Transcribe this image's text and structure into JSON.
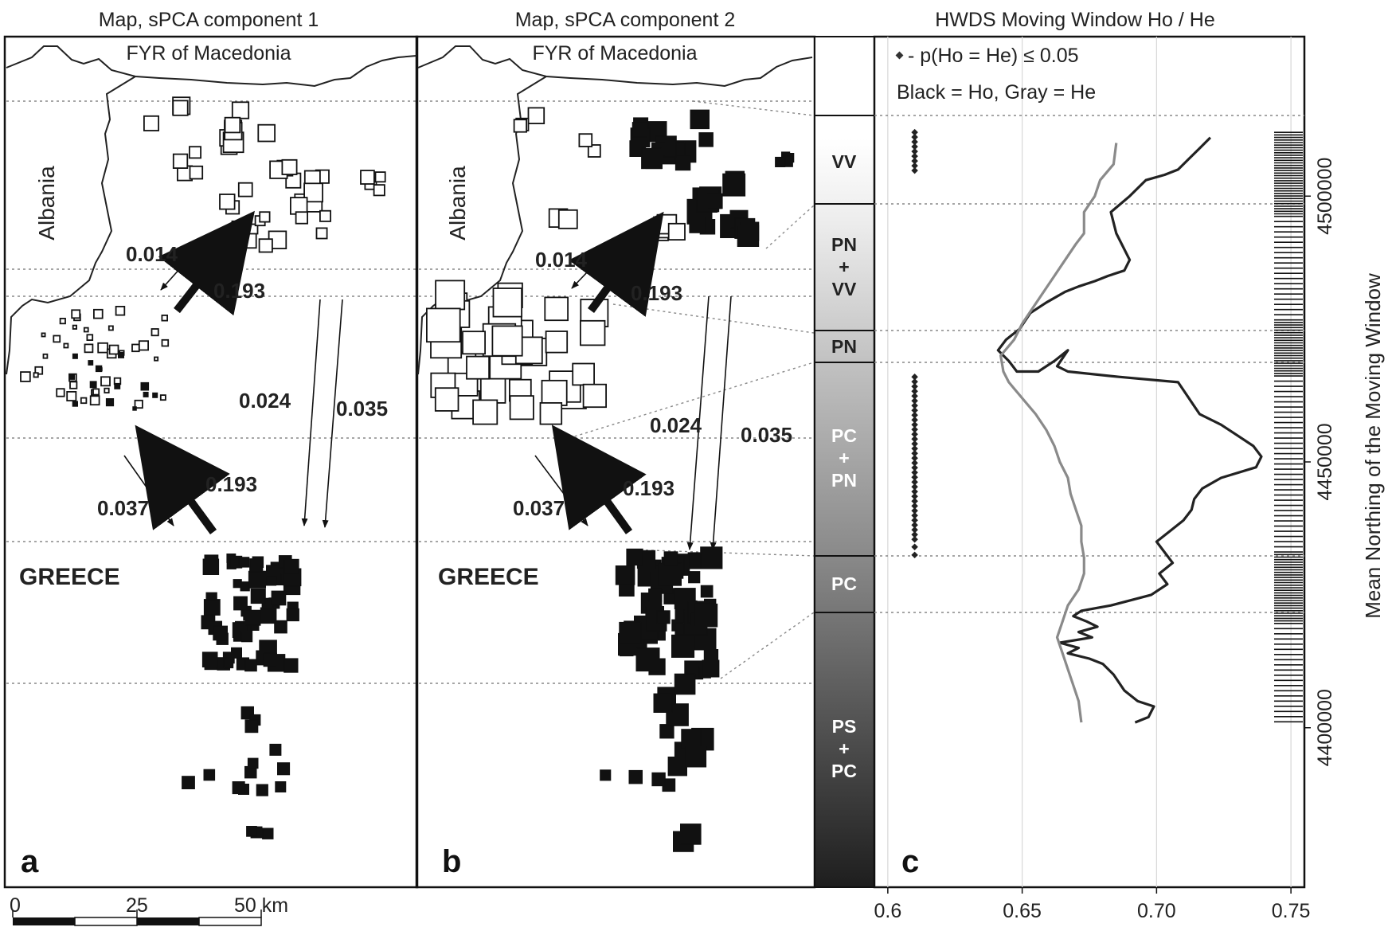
{
  "titles": {
    "a": "Map, sPCA component 1",
    "b": "Map, sPCA component 2",
    "c": "HWDS Moving Window Ho / He"
  },
  "labels": {
    "country_north": "FYR of Macedonia",
    "country_west": "Albania",
    "country_south": "GREECE"
  },
  "panel_letters": {
    "a": "a",
    "b": "b",
    "c": "c"
  },
  "flows": {
    "f1": "0.014",
    "f2": "0.193",
    "f3": "0.024",
    "f4": "0.035",
    "f5": "0.037",
    "f6": "0.193"
  },
  "scalebar": {
    "t0": "0",
    "t1": "25",
    "t2": "50 km"
  },
  "zones": [
    {
      "id": "blank",
      "label": ""
    },
    {
      "id": "vv",
      "label": "VV"
    },
    {
      "id": "pnvv",
      "label": "PN\n+\nVV"
    },
    {
      "id": "pn",
      "label": "PN"
    },
    {
      "id": "pcpn",
      "label": "PC\n+\nPN"
    },
    {
      "id": "pc",
      "label": "PC"
    },
    {
      "id": "pspc",
      "label": "PS\n+\nPC"
    }
  ],
  "legend": {
    "line1": "- p(Ho = He) ≤ 0.05",
    "line2": "Black = Ho, Gray = He"
  },
  "chart_data": {
    "type": "line",
    "xlabel": "",
    "ylabel": "Mean Northing of the Moving Window",
    "xlim": [
      0.595,
      0.755
    ],
    "ylim": [
      4370000,
      4530000
    ],
    "xticks": [
      "0.6",
      "0.65",
      "0.70",
      "0.75"
    ],
    "yticks": [
      "4400000",
      "4450000",
      "4500000"
    ],
    "grid": true,
    "series": [
      {
        "name": "Ho",
        "color": "#222222",
        "points": [
          [
            0.72,
            4511000
          ],
          [
            0.716,
            4509000
          ],
          [
            0.712,
            4507000
          ],
          [
            0.708,
            4505000
          ],
          [
            0.703,
            4504000
          ],
          [
            0.696,
            4503000
          ],
          [
            0.69,
            4500000
          ],
          [
            0.683,
            4497000
          ],
          [
            0.685,
            4493000
          ],
          [
            0.69,
            4488000
          ],
          [
            0.688,
            4486000
          ],
          [
            0.682,
            4485000
          ],
          [
            0.677,
            4484000
          ],
          [
            0.671,
            4483000
          ],
          [
            0.666,
            4482000
          ],
          [
            0.659,
            4480000
          ],
          [
            0.653,
            4478000
          ],
          [
            0.649,
            4475000
          ],
          [
            0.644,
            4473000
          ],
          [
            0.641,
            4471000
          ],
          [
            0.645,
            4469000
          ],
          [
            0.648,
            4467000
          ],
          [
            0.656,
            4467000
          ],
          [
            0.662,
            4469000
          ],
          [
            0.667,
            4471000
          ],
          [
            0.663,
            4468000
          ],
          [
            0.667,
            4467000
          ],
          [
            0.686,
            4466000
          ],
          [
            0.708,
            4465000
          ],
          [
            0.712,
            4462000
          ],
          [
            0.716,
            4459000
          ],
          [
            0.724,
            4457000
          ],
          [
            0.73,
            4455000
          ],
          [
            0.736,
            4453000
          ],
          [
            0.739,
            4451000
          ],
          [
            0.737,
            4449000
          ],
          [
            0.724,
            4447000
          ],
          [
            0.717,
            4445000
          ],
          [
            0.714,
            4443000
          ],
          [
            0.713,
            4441000
          ],
          [
            0.71,
            4439000
          ],
          [
            0.705,
            4437000
          ],
          [
            0.7,
            4435000
          ],
          [
            0.703,
            4433000
          ],
          [
            0.706,
            4431000
          ],
          [
            0.701,
            4429000
          ],
          [
            0.704,
            4427000
          ],
          [
            0.698,
            4425000
          ],
          [
            0.683,
            4423000
          ],
          [
            0.672,
            4422000
          ],
          [
            0.669,
            4421000
          ],
          [
            0.674,
            4420000
          ],
          [
            0.678,
            4419000
          ],
          [
            0.671,
            4418000
          ],
          [
            0.676,
            4417000
          ],
          [
            0.664,
            4416000
          ],
          [
            0.671,
            4415000
          ],
          [
            0.667,
            4414000
          ],
          [
            0.675,
            4413000
          ],
          [
            0.68,
            4412000
          ],
          [
            0.684,
            4410000
          ],
          [
            0.688,
            4407000
          ],
          [
            0.693,
            4405000
          ],
          [
            0.699,
            4404000
          ],
          [
            0.697,
            4402000
          ],
          [
            0.692,
            4401000
          ]
        ]
      },
      {
        "name": "He",
        "color": "#8a8a8a",
        "points": [
          [
            0.685,
            4510000
          ],
          [
            0.684,
            4506000
          ],
          [
            0.679,
            4503000
          ],
          [
            0.677,
            4500000
          ],
          [
            0.673,
            4497000
          ],
          [
            0.673,
            4493000
          ],
          [
            0.67,
            4491000
          ],
          [
            0.666,
            4488000
          ],
          [
            0.662,
            4485000
          ],
          [
            0.658,
            4482000
          ],
          [
            0.654,
            4479000
          ],
          [
            0.65,
            4476000
          ],
          [
            0.647,
            4473000
          ],
          [
            0.642,
            4470000
          ],
          [
            0.643,
            4467000
          ],
          [
            0.645,
            4465000
          ],
          [
            0.65,
            4462000
          ],
          [
            0.655,
            4459000
          ],
          [
            0.659,
            4456000
          ],
          [
            0.662,
            4453000
          ],
          [
            0.664,
            4450000
          ],
          [
            0.667,
            4447000
          ],
          [
            0.668,
            4444000
          ],
          [
            0.67,
            4441000
          ],
          [
            0.672,
            4438000
          ],
          [
            0.672,
            4435000
          ],
          [
            0.673,
            4432000
          ],
          [
            0.673,
            4429000
          ],
          [
            0.671,
            4426000
          ],
          [
            0.667,
            4423000
          ],
          [
            0.665,
            4420000
          ],
          [
            0.663,
            4417000
          ],
          [
            0.665,
            4414000
          ],
          [
            0.667,
            4411000
          ],
          [
            0.669,
            4408000
          ],
          [
            0.671,
            4405000
          ],
          [
            0.672,
            4401000
          ]
        ]
      }
    ],
    "significance_x": 0.61,
    "significance_ranges": [
      [
        4504000,
        4512000
      ],
      [
        4435000,
        4466000
      ]
    ]
  }
}
